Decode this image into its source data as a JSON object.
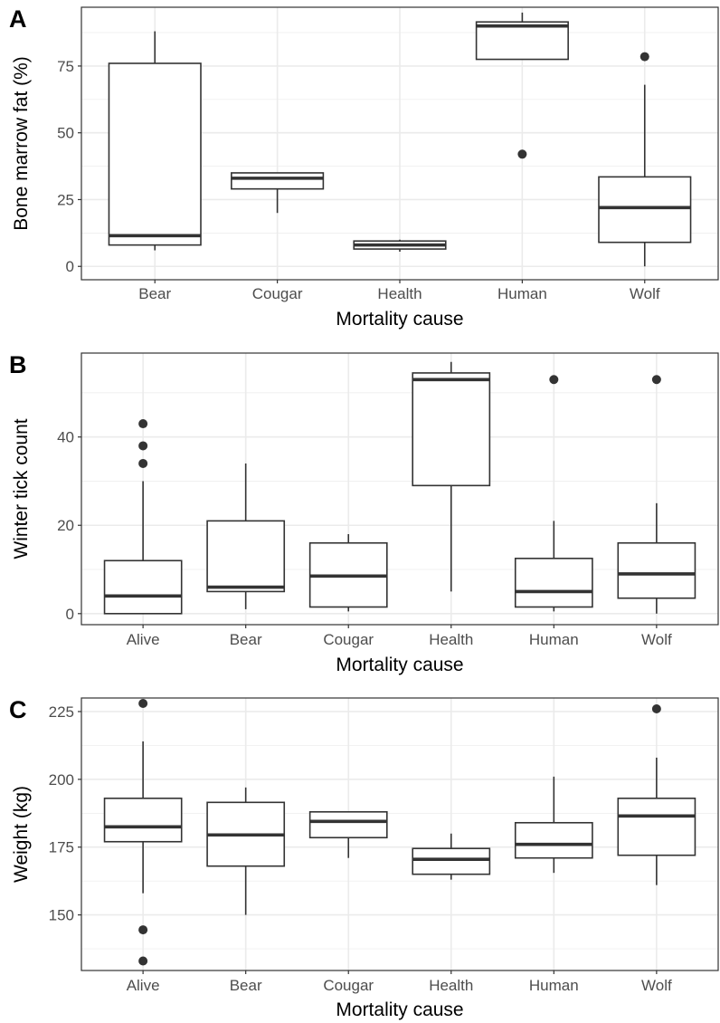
{
  "chart_data": [
    {
      "panel_label": "A",
      "type": "boxplot",
      "xlabel": "Mortality cause",
      "ylabel": "Bone marrow fat (%)",
      "ylim": [
        -5,
        97
      ],
      "yticks": [
        0,
        25,
        50,
        75
      ],
      "grid": true,
      "categories": [
        "Bear",
        "Cougar",
        "Health",
        "Human",
        "Wolf"
      ],
      "boxes": [
        {
          "category": "Bear",
          "whisker_low": 6,
          "q1": 8,
          "median": 11.5,
          "q3": 76,
          "whisker_high": 88,
          "outliers": []
        },
        {
          "category": "Cougar",
          "whisker_low": 20,
          "q1": 29,
          "median": 33,
          "q3": 35,
          "whisker_high": 35,
          "outliers": []
        },
        {
          "category": "Health",
          "whisker_low": 5.5,
          "q1": 6.5,
          "median": 8,
          "q3": 9.5,
          "whisker_high": 10,
          "outliers": []
        },
        {
          "category": "Human",
          "whisker_low": 77.5,
          "q1": 77.5,
          "median": 90,
          "q3": 91.5,
          "whisker_high": 95,
          "outliers": [
            42
          ]
        },
        {
          "category": "Wolf",
          "whisker_low": 0,
          "q1": 9,
          "median": 22,
          "q3": 33.5,
          "whisker_high": 68,
          "outliers": [
            78.5
          ]
        }
      ]
    },
    {
      "panel_label": "B",
      "type": "boxplot",
      "xlabel": "Mortality cause",
      "ylabel": "Winter tick count",
      "ylim": [
        -2.5,
        59
      ],
      "yticks": [
        0,
        20,
        40
      ],
      "grid": true,
      "categories": [
        "Alive",
        "Bear",
        "Cougar",
        "Health",
        "Human",
        "Wolf"
      ],
      "boxes": [
        {
          "category": "Alive",
          "whisker_low": 0,
          "q1": 0,
          "median": 4,
          "q3": 12,
          "whisker_high": 30,
          "outliers": [
            34,
            38,
            43
          ]
        },
        {
          "category": "Bear",
          "whisker_low": 1,
          "q1": 5,
          "median": 6,
          "q3": 21,
          "whisker_high": 34,
          "outliers": []
        },
        {
          "category": "Cougar",
          "whisker_low": 0.5,
          "q1": 1.5,
          "median": 8.5,
          "q3": 16,
          "whisker_high": 18,
          "outliers": []
        },
        {
          "category": "Health",
          "whisker_low": 5,
          "q1": 29,
          "median": 53,
          "q3": 54.5,
          "whisker_high": 57,
          "outliers": []
        },
        {
          "category": "Human",
          "whisker_low": 0.5,
          "q1": 1.5,
          "median": 5,
          "q3": 12.5,
          "whisker_high": 21,
          "outliers": [
            53
          ]
        },
        {
          "category": "Wolf",
          "whisker_low": 0,
          "q1": 3.5,
          "median": 9,
          "q3": 16,
          "whisker_high": 25,
          "outliers": [
            53
          ]
        }
      ]
    },
    {
      "panel_label": "C",
      "type": "boxplot",
      "xlabel": "Mortality cause",
      "ylabel": "Weight (kg)",
      "ylim": [
        129.5,
        230
      ],
      "yticks": [
        150,
        175,
        200,
        225
      ],
      "grid": true,
      "categories": [
        "Alive",
        "Bear",
        "Cougar",
        "Health",
        "Human",
        "Wolf"
      ],
      "boxes": [
        {
          "category": "Alive",
          "whisker_low": 158,
          "q1": 177,
          "median": 182.5,
          "q3": 193,
          "whisker_high": 214,
          "outliers": [
            228,
            144.5,
            133
          ]
        },
        {
          "category": "Bear",
          "whisker_low": 150,
          "q1": 168,
          "median": 179.5,
          "q3": 191.5,
          "whisker_high": 197,
          "outliers": []
        },
        {
          "category": "Cougar",
          "whisker_low": 171,
          "q1": 178.5,
          "median": 184.5,
          "q3": 188,
          "whisker_high": 188,
          "outliers": []
        },
        {
          "category": "Health",
          "whisker_low": 163,
          "q1": 165,
          "median": 170.5,
          "q3": 174.5,
          "whisker_high": 180,
          "outliers": []
        },
        {
          "category": "Human",
          "whisker_low": 165.5,
          "q1": 171,
          "median": 176,
          "q3": 184,
          "whisker_high": 201,
          "outliers": []
        },
        {
          "category": "Wolf",
          "whisker_low": 161,
          "q1": 172,
          "median": 186.5,
          "q3": 193,
          "whisker_high": 208,
          "outliers": [
            226
          ]
        }
      ]
    }
  ]
}
